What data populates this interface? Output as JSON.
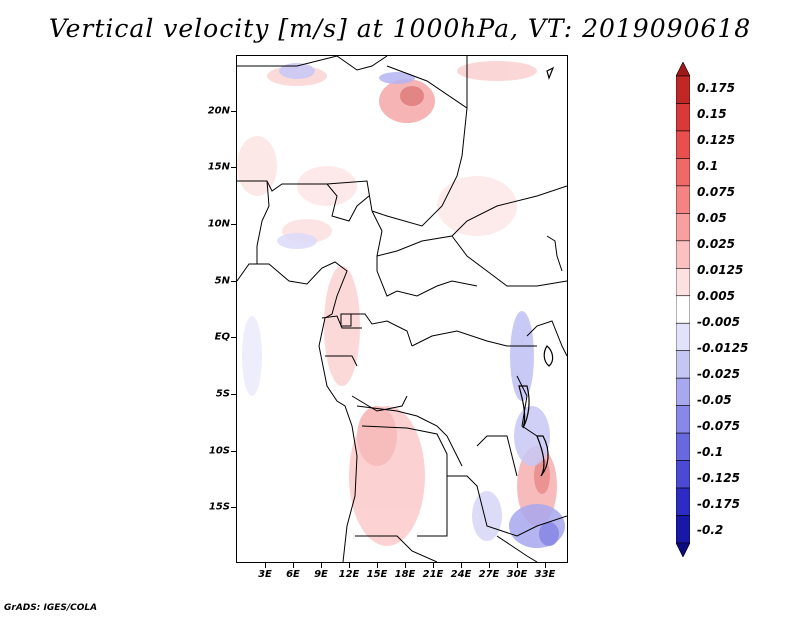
{
  "title": "Vertical velocity [m/s] at 1000hPa, VT: 2019090618",
  "credit": "GrADS: IGES/COLA",
  "map": {
    "lat_range": [
      -20,
      25
    ],
    "lon_range": [
      0,
      35
    ],
    "lat_labels": [
      "20N",
      "15N",
      "10N",
      "5N",
      "EQ",
      "5S",
      "10S",
      "15S"
    ],
    "lon_labels": [
      "3E",
      "6E",
      "9E",
      "12E",
      "15E",
      "18E",
      "21E",
      "24E",
      "27E",
      "30E",
      "33E"
    ],
    "field": "vertical velocity",
    "units": "m/s",
    "level": "1000hPa"
  },
  "colorbar": {
    "labels": [
      "0.175",
      "0.15",
      "0.125",
      "0.1",
      "0.075",
      "0.05",
      "0.025",
      "0.0125",
      "0.005",
      "-0.005",
      "-0.0125",
      "-0.025",
      "-0.05",
      "-0.075",
      "-0.1",
      "-0.125",
      "-0.175",
      "-0.2"
    ],
    "colors": [
      "#a01818",
      "#c02828",
      "#d83a3a",
      "#e85050",
      "#f06868",
      "#f48484",
      "#f8a0a0",
      "#fbc0c0",
      "#fde0e0",
      "#ffffff",
      "#e2e2fb",
      "#c6c6f5",
      "#a8a8ef",
      "#8888e8",
      "#6868df",
      "#4a4ad4",
      "#2c2cc4",
      "#1818a8",
      "#0c0c80"
    ]
  }
}
